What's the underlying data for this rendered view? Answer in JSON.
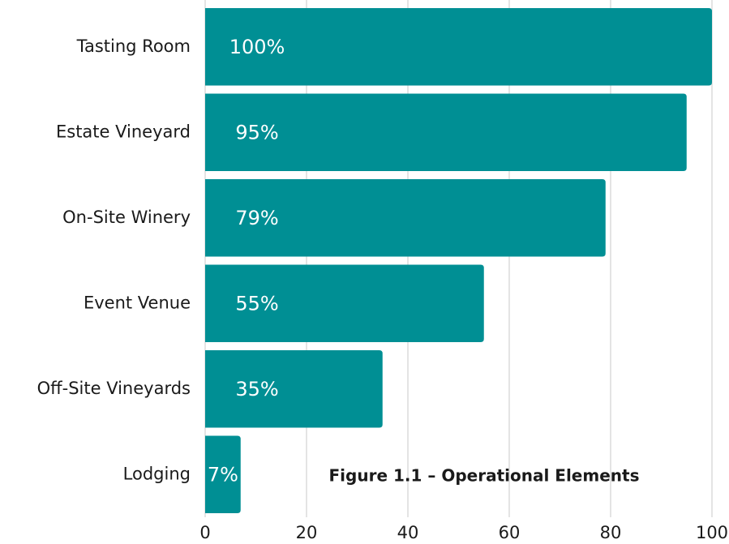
{
  "chart_data": {
    "type": "bar",
    "orientation": "horizontal",
    "annotation": "Figure 1.1 – Operational Elements",
    "categories": [
      "Tasting Room",
      "Estate Vineyard",
      "On-Site Winery",
      "Event Venue",
      "Off-Site Vineyards",
      "Lodging"
    ],
    "values": [
      100,
      95,
      79,
      55,
      35,
      7
    ],
    "value_labels": [
      "100%",
      "95%",
      "79%",
      "55%",
      "35%",
      "7%"
    ],
    "color": "#008f94",
    "xlim": [
      0,
      100
    ],
    "xticks": [
      0,
      20,
      40,
      60,
      80,
      100
    ],
    "grid": true
  }
}
